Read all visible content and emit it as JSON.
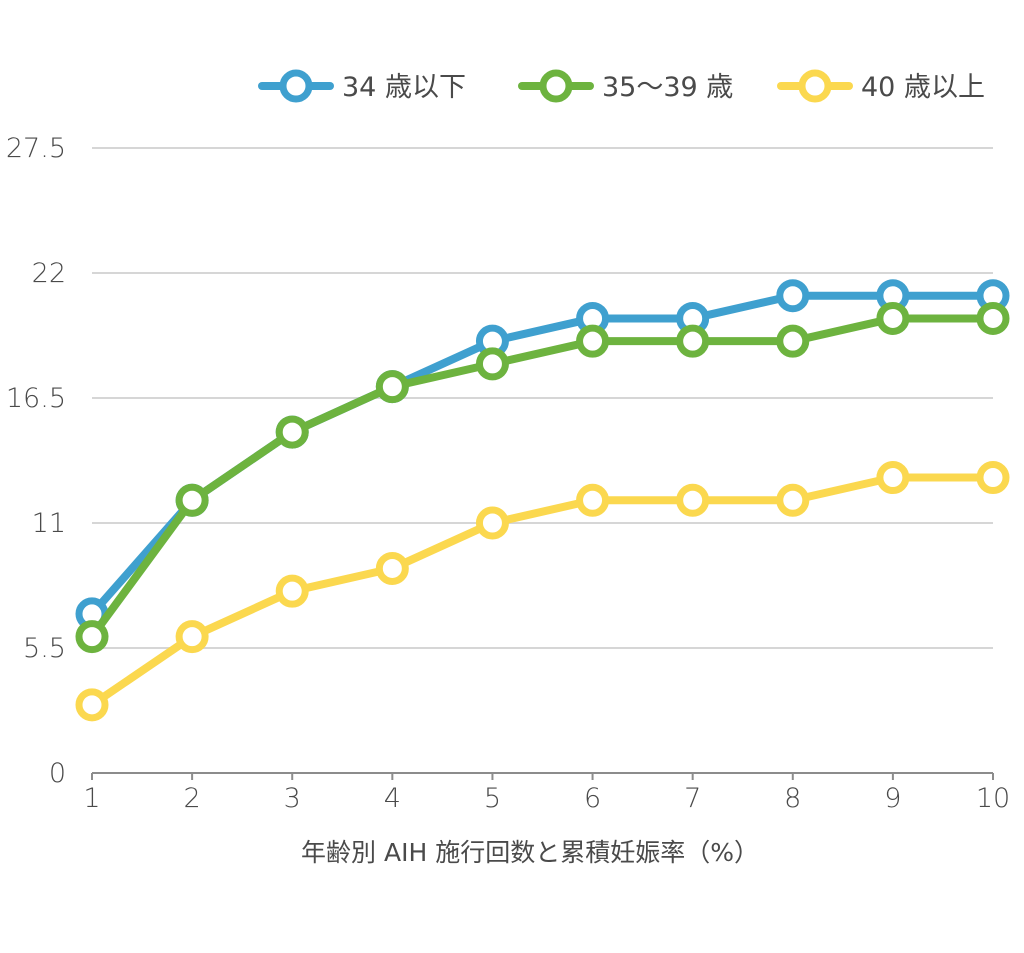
{
  "chart_data": {
    "type": "line",
    "title": "",
    "xlabel": "年齢別 AIH 施行回数と累積妊娠率（%）",
    "ylabel": "",
    "x": [
      1,
      2,
      3,
      4,
      5,
      6,
      7,
      8,
      9,
      10
    ],
    "x_tick_labels": [
      "1",
      "2",
      "3",
      "4",
      "5",
      "6",
      "7",
      "8",
      "9",
      "10"
    ],
    "ylim": [
      0,
      27.5
    ],
    "y_ticks": [
      0,
      5.5,
      11,
      16.5,
      22,
      27.5
    ],
    "y_tick_labels": [
      "0",
      "5.5",
      "11",
      "16.5",
      "22",
      "27.5"
    ],
    "grid": true,
    "legend_position": "top-right",
    "series": [
      {
        "name": "34 歳以下",
        "color": "#3fa0cf",
        "values": [
          7,
          12,
          15,
          17,
          19,
          20,
          20,
          21,
          21,
          21
        ]
      },
      {
        "name": "35〜39 歳",
        "color": "#6db33f",
        "values": [
          6,
          12,
          15,
          17,
          18,
          19,
          19,
          19,
          20,
          20
        ]
      },
      {
        "name": "40 歳以上",
        "color": "#fbd84f",
        "values": [
          3,
          6,
          8,
          9,
          11,
          12,
          12,
          12,
          13,
          13
        ]
      }
    ]
  }
}
